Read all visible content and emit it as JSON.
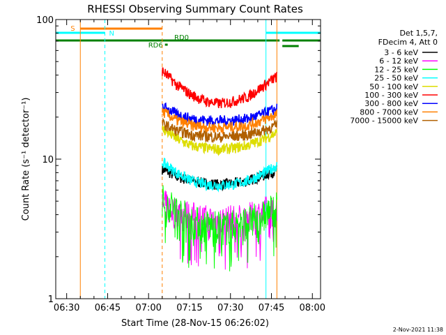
{
  "chart_data": {
    "type": "line",
    "title": "RHESSI Observing Summary Count Rates",
    "xlabel": "Start Time (28-Nov-15 06:26:02)",
    "ylabel": "Count Rate (s⁻¹ detector⁻¹)",
    "y_scale": "log",
    "ylim": [
      1,
      100
    ],
    "xlim": [
      "06:26",
      "08:03"
    ],
    "x_ticks": [
      "06:30",
      "06:45",
      "07:00",
      "07:15",
      "07:30",
      "07:45",
      "08:00"
    ],
    "y_ticks": [
      "1",
      "10",
      "100"
    ],
    "grid": false,
    "legend_position": "right",
    "legend_header": [
      "Det 1,5,7,",
      "FDecim 4, Att 0"
    ],
    "timestamp": "2-Nov-2021 11:38",
    "data_start": "07:05",
    "data_end": "07:47",
    "series": [
      {
        "name": "3 - 6 keV",
        "color": "#000000",
        "values": [
          8.5,
          7.5,
          7.0,
          6.7,
          6.6,
          6.7,
          7.0,
          7.6,
          8.3
        ]
      },
      {
        "name": "6 - 12 keV",
        "color": "#ff00ff",
        "values": [
          4.8,
          4.2,
          3.9,
          3.7,
          3.6,
          3.7,
          3.8,
          4.1,
          4.6
        ]
      },
      {
        "name": "12 - 25 keV",
        "color": "#00ff00",
        "values": [
          5.2,
          4.4,
          3.7,
          3.4,
          3.3,
          3.4,
          3.6,
          4.0,
          4.6
        ]
      },
      {
        "name": "25 - 50 keV",
        "color": "#00ffff",
        "values": [
          9.5,
          8.0,
          7.0,
          6.6,
          6.5,
          6.6,
          7.0,
          7.8,
          9.0
        ]
      },
      {
        "name": "50 - 100 keV",
        "color": "#dddd00",
        "values": [
          16.5,
          14.0,
          12.5,
          12.0,
          11.8,
          12.0,
          12.6,
          13.8,
          15.5
        ]
      },
      {
        "name": "100 - 300 keV",
        "color": "#ff0000",
        "values": [
          43,
          34,
          29,
          26,
          25,
          26,
          28,
          33,
          39
        ]
      },
      {
        "name": "300 - 800 keV",
        "color": "#0000ff",
        "values": [
          24,
          21,
          19.5,
          19,
          18.8,
          19,
          19.5,
          21,
          23
        ]
      },
      {
        "name": "800 - 7000 keV",
        "color": "#ff8000",
        "values": [
          22,
          19,
          17.5,
          17,
          16.8,
          17,
          17.5,
          19,
          21
        ]
      },
      {
        "name": "7000 - 15000 keV",
        "color": "#b06000",
        "values": [
          18,
          16,
          15,
          14.6,
          14.4,
          14.6,
          15,
          16,
          17.5
        ]
      }
    ],
    "annotations": [
      {
        "label": "S",
        "color": "#ff8000",
        "start": "06:35",
        "end": "07:05"
      },
      {
        "label": "N",
        "color": "#00ffff",
        "start": "06:26",
        "end": "06:44"
      },
      {
        "label": "N",
        "color": "#00ffff",
        "start": "07:43",
        "end": "08:03"
      },
      {
        "label": "RD0",
        "color": "#008000",
        "start": "06:26",
        "end": "07:48"
      },
      {
        "label": "RD6",
        "color": "#008000",
        "start": "07:06",
        "end": "07:07"
      }
    ],
    "vlines": [
      {
        "time": "06:26",
        "color": "#00ffff",
        "style": "solid"
      },
      {
        "time": "06:35",
        "color": "#ff8000",
        "style": "solid"
      },
      {
        "time": "06:44",
        "color": "#00ffff",
        "style": "dashed"
      },
      {
        "time": "07:05",
        "color": "#ff8000",
        "style": "dashed"
      },
      {
        "time": "07:43",
        "color": "#00ffff",
        "style": "solid"
      },
      {
        "time": "07:47",
        "color": "#ff8000",
        "style": "solid"
      },
      {
        "time": "08:03",
        "color": "#00ffff",
        "style": "dashed"
      }
    ]
  }
}
